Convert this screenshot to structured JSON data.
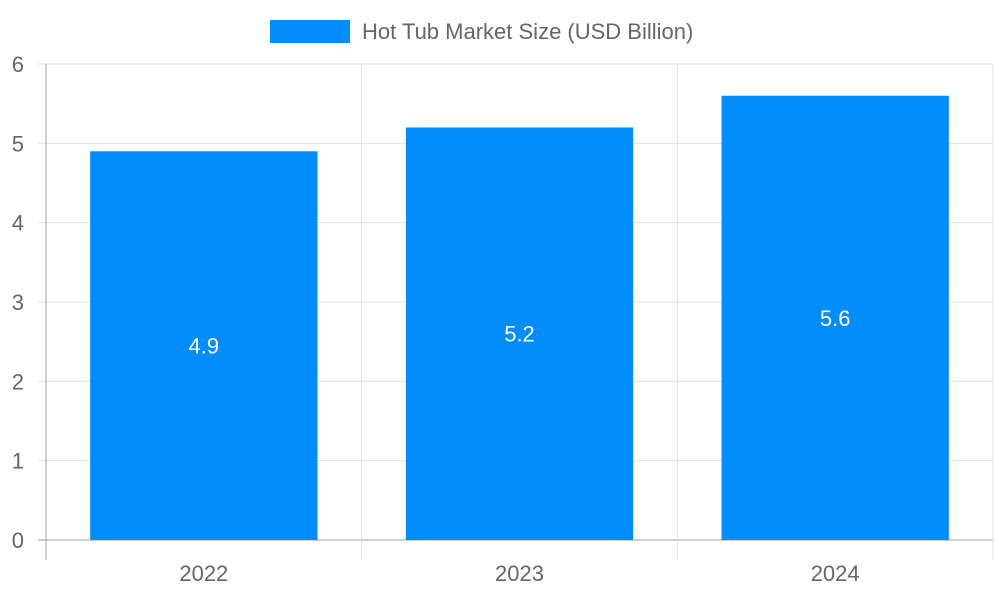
{
  "chart_data": {
    "type": "bar",
    "categories": [
      "2022",
      "2023",
      "2024"
    ],
    "series": [
      {
        "name": "Hot Tub Market Size (USD Billion)",
        "values": [
          4.9,
          5.2,
          5.6
        ]
      }
    ],
    "data_labels": [
      "4.9",
      "5.2",
      "5.6"
    ],
    "title": "",
    "xlabel": "",
    "ylabel": "",
    "ylim": [
      0,
      6
    ],
    "yticks": [
      "0",
      "1",
      "2",
      "3",
      "4",
      "5",
      "6"
    ],
    "grid": true,
    "legend_position": "top",
    "colors": {
      "bar": "#008cfa",
      "grid": "#e0e0e0",
      "axis": "#a0a0a0",
      "text": "#666666",
      "data_label": "#ffffff"
    }
  }
}
